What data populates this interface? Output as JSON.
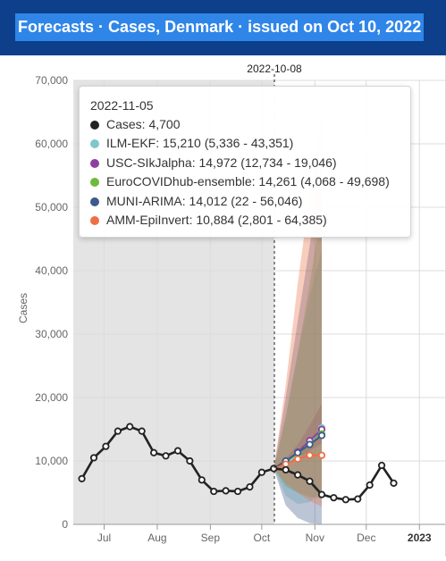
{
  "header": {
    "title": "Forecasts · Cases, Denmark  · issued on Oct 10, 2022"
  },
  "chart_data": {
    "type": "line",
    "ylabel": "Cases",
    "ylim": [
      0,
      70000
    ],
    "yticks": [
      0,
      10000,
      20000,
      30000,
      40000,
      50000,
      60000,
      70000
    ],
    "ytick_labels": [
      "0",
      "10,000",
      "20,000",
      "30,000",
      "40,000",
      "50,000",
      "60,000",
      "70,000"
    ],
    "xlim": [
      "2022-06-13",
      "2023-01-16"
    ],
    "xticks": [
      {
        "date": "2022-07-01",
        "label": "Jul",
        "bold": false
      },
      {
        "date": "2022-08-01",
        "label": "Aug",
        "bold": false
      },
      {
        "date": "2022-09-01",
        "label": "Sep",
        "bold": false
      },
      {
        "date": "2022-10-01",
        "label": "Oct",
        "bold": false
      },
      {
        "date": "2022-11-01",
        "label": "Nov",
        "bold": false
      },
      {
        "date": "2022-12-01",
        "label": "Dec",
        "bold": false
      },
      {
        "date": "2023-01-01",
        "label": "2023",
        "bold": true
      }
    ],
    "forecast_line": {
      "date": "2022-10-08",
      "label": "2022-10-08"
    },
    "grid": true,
    "cases": {
      "name": "Cases",
      "color": "#222222",
      "x": [
        "2022-06-18",
        "2022-06-25",
        "2022-07-02",
        "2022-07-09",
        "2022-07-16",
        "2022-07-23",
        "2022-07-30",
        "2022-08-06",
        "2022-08-13",
        "2022-08-20",
        "2022-08-27",
        "2022-09-03",
        "2022-09-10",
        "2022-09-17",
        "2022-09-24",
        "2022-10-01",
        "2022-10-08",
        "2022-10-15",
        "2022-10-22",
        "2022-10-29",
        "2022-11-05",
        "2022-11-12",
        "2022-11-19",
        "2022-11-26",
        "2022-12-03",
        "2022-12-10",
        "2022-12-17"
      ],
      "y": [
        7200,
        10500,
        12300,
        14700,
        15400,
        14700,
        11300,
        10800,
        11600,
        10000,
        7000,
        5200,
        5300,
        5200,
        5900,
        8200,
        8800,
        8600,
        7800,
        6800,
        4700,
        4200,
        3900,
        4000,
        6200,
        9300,
        6500
      ]
    },
    "forecasts": [
      {
        "name": "ILM-EKF",
        "color": "#7fc7c9",
        "x": [
          "2022-10-08",
          "2022-10-15",
          "2022-10-22",
          "2022-10-29",
          "2022-11-05"
        ],
        "y": [
          8800,
          9500,
          11000,
          12900,
          15210
        ],
        "lower": [
          8800,
          4500,
          3200,
          3500,
          5336
        ],
        "upper": [
          8800,
          17000,
          27000,
          36000,
          43351
        ]
      },
      {
        "name": "USC-SIkJalpha",
        "color": "#8e3fa0",
        "x": [
          "2022-10-08",
          "2022-10-15",
          "2022-10-22",
          "2022-10-29",
          "2022-11-05"
        ],
        "y": [
          8800,
          9800,
          11400,
          13200,
          14972
        ],
        "lower": [
          8800,
          9200,
          10400,
          11600,
          12734
        ],
        "upper": [
          8800,
          10400,
          12600,
          15600,
          19046
        ]
      },
      {
        "name": "EuroCOVIDhub-ensemble",
        "color": "#6dbb3c",
        "x": [
          "2022-10-08",
          "2022-10-15",
          "2022-10-22",
          "2022-10-29",
          "2022-11-05"
        ],
        "y": [
          8800,
          9900,
          11200,
          12600,
          14261
        ],
        "lower": [
          8800,
          6000,
          5000,
          4300,
          4068
        ],
        "upper": [
          8800,
          17000,
          27000,
          38000,
          49698
        ]
      },
      {
        "name": "MUNI-ARIMA",
        "color": "#3d5a8a",
        "x": [
          "2022-10-08",
          "2022-10-15",
          "2022-10-22",
          "2022-10-29",
          "2022-11-05"
        ],
        "y": [
          8800,
          10000,
          11300,
          12600,
          14012
        ],
        "lower": [
          8800,
          3000,
          1000,
          200,
          22
        ],
        "upper": [
          8800,
          20000,
          32000,
          44000,
          56046
        ]
      },
      {
        "name": "AMM-EpiInvert",
        "color": "#ee6f44",
        "x": [
          "2022-10-08",
          "2022-10-15",
          "2022-10-22",
          "2022-10-29",
          "2022-11-05"
        ],
        "y": [
          8800,
          9500,
          10300,
          10900,
          10884
        ],
        "lower": [
          8800,
          6500,
          5000,
          3700,
          2801
        ],
        "upper": [
          8800,
          22000,
          38000,
          52000,
          64385
        ]
      }
    ]
  },
  "tooltip": {
    "date": "2022-11-05",
    "rows": [
      {
        "label": "Cases: 4,700",
        "color": "#222222"
      },
      {
        "label": "ILM-EKF: 15,210 (5,336 - 43,351)",
        "color": "#7fc7c9"
      },
      {
        "label": "USC-SIkJalpha: 14,972 (12,734 - 19,046)",
        "color": "#8e3fa0"
      },
      {
        "label": "EuroCOVIDhub-ensemble: 14,261 (4,068 - 49,698)",
        "color": "#6dbb3c"
      },
      {
        "label": "MUNI-ARIMA: 14,012 (22 - 56,046)",
        "color": "#3d5a8a"
      },
      {
        "label": "AMM-EpiInvert: 10,884 (2,801 - 64,385)",
        "color": "#ee6f44"
      }
    ]
  }
}
